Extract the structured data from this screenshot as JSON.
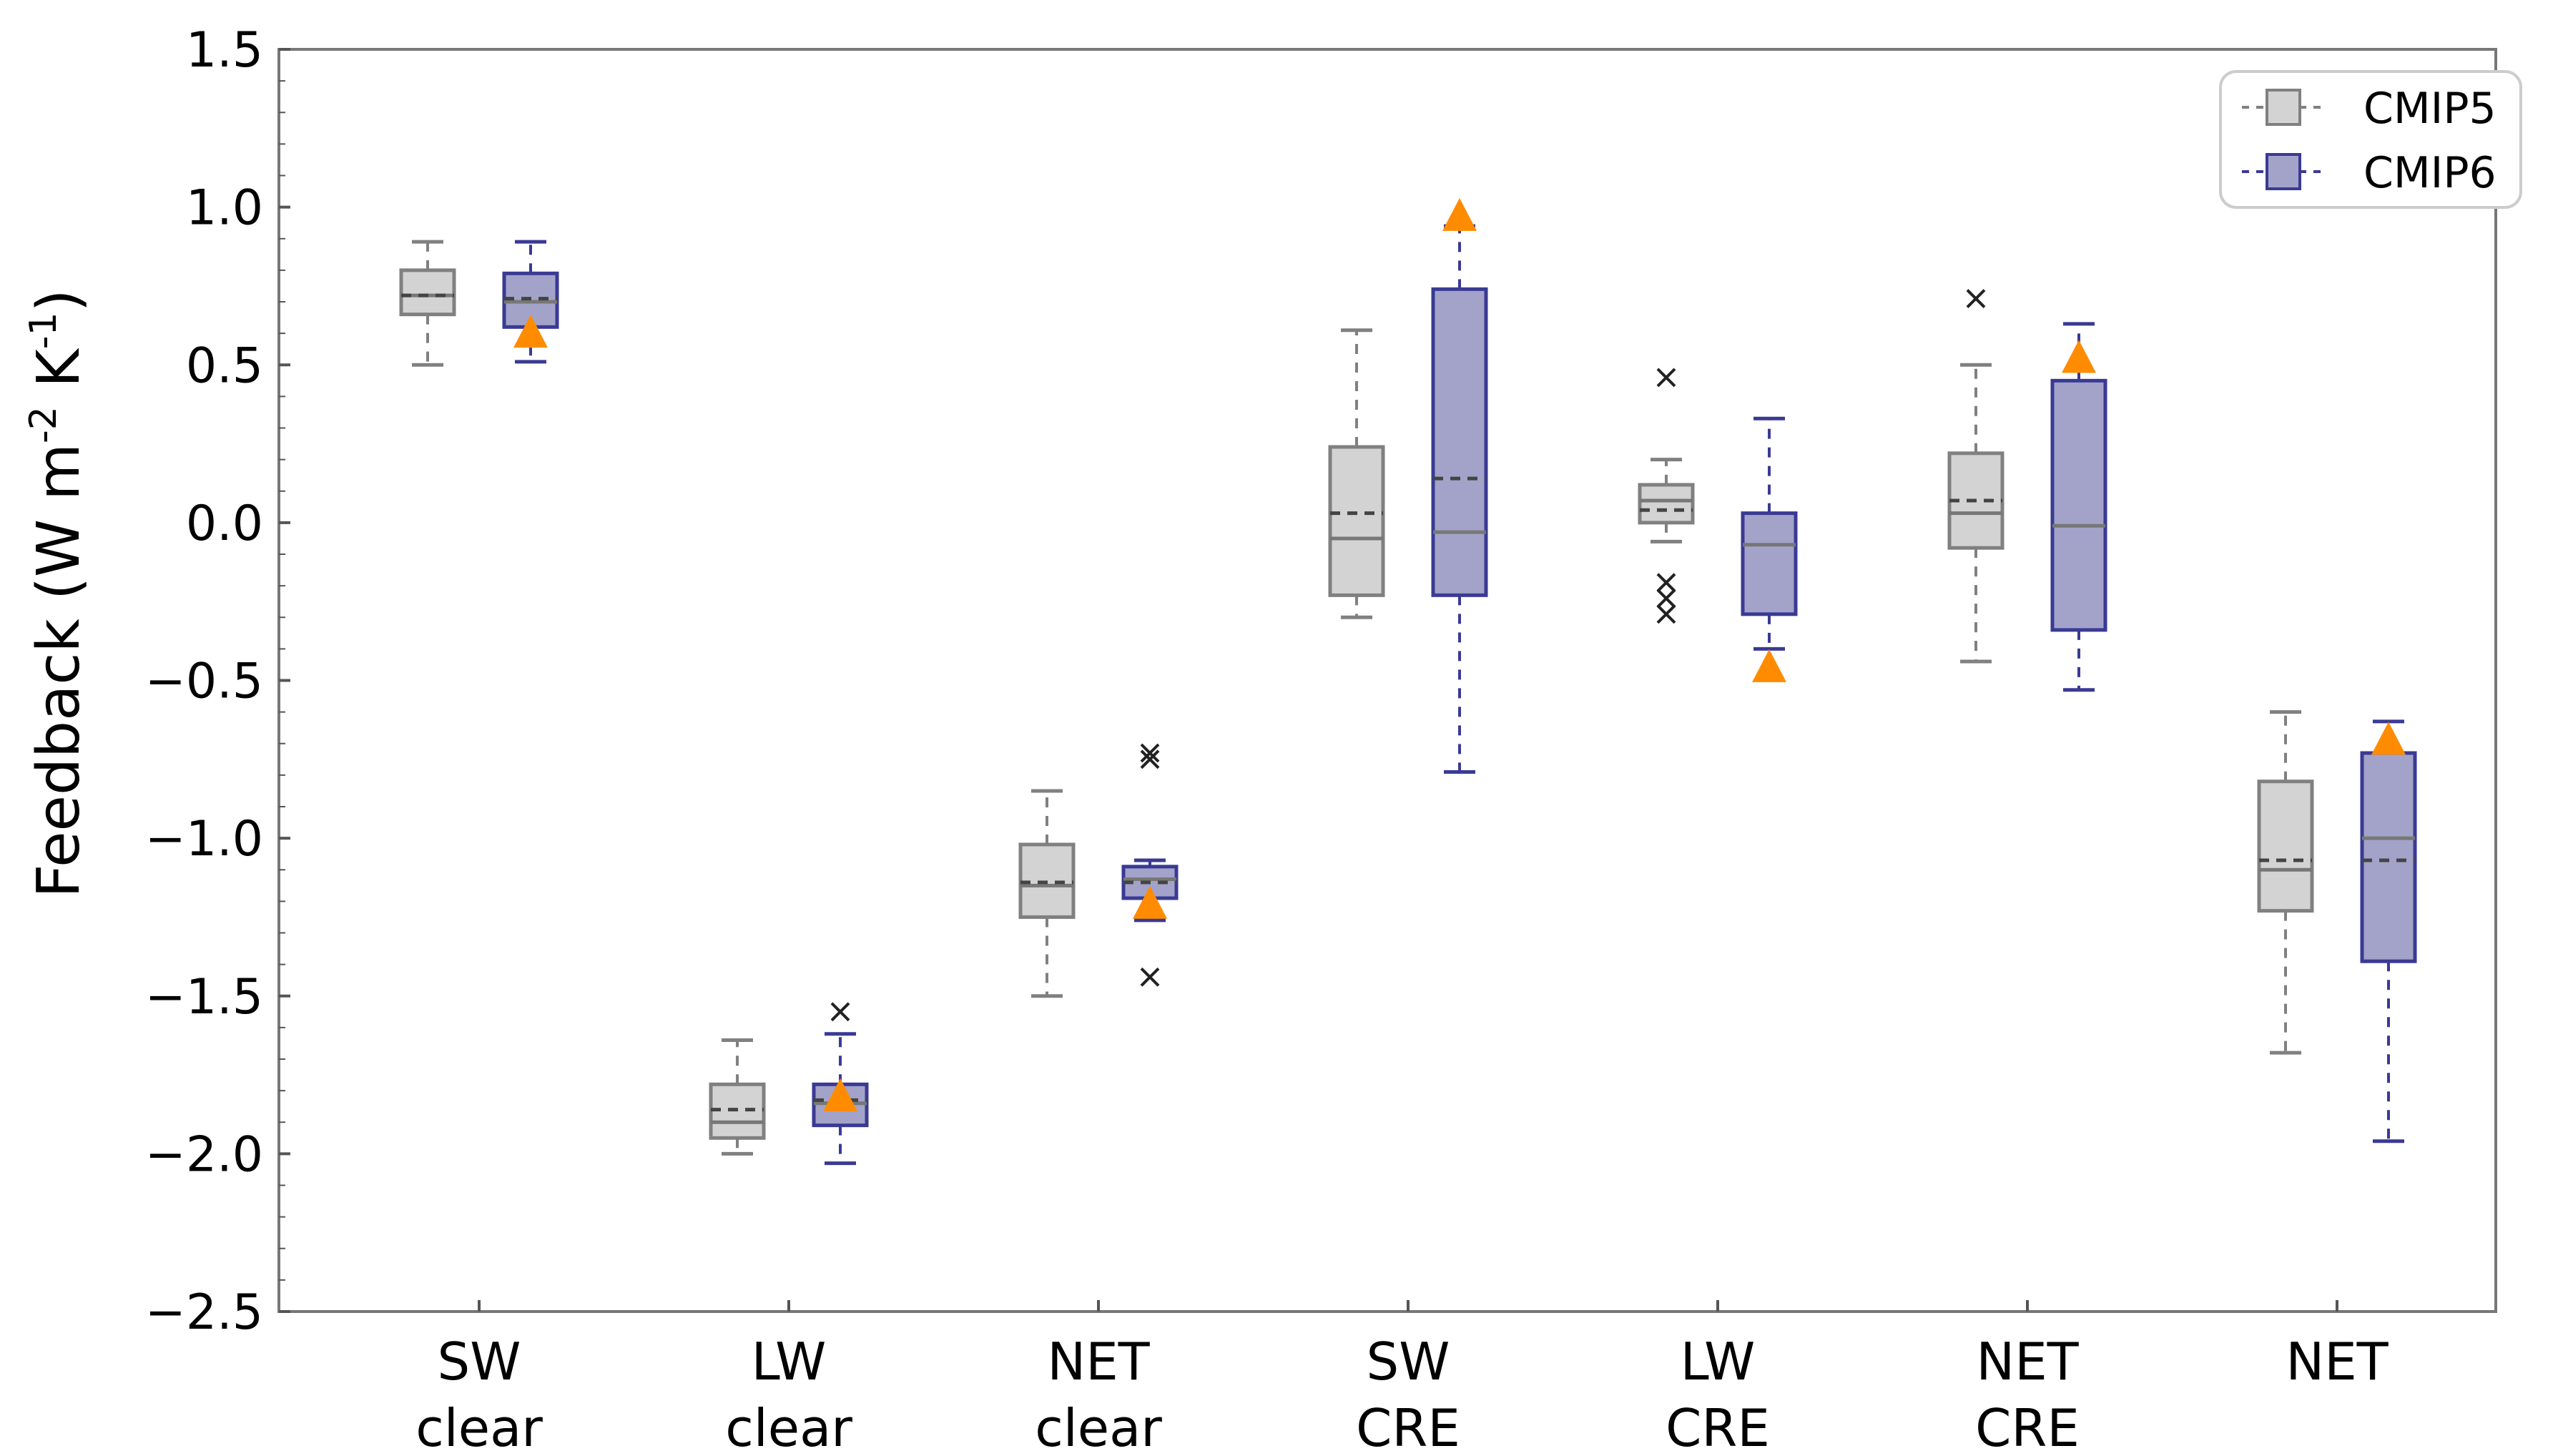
{
  "chart_data": {
    "type": "box",
    "title": "",
    "xlabel": "",
    "ylabel": "Feedback (W m-2 K-1)",
    "ylabel_parts": {
      "base": "Feedback (W m",
      "exp1": "-2",
      "mid": " K",
      "exp2": "-1",
      "end": ")"
    },
    "ylim": [
      -2.5,
      1.5
    ],
    "yticks": [
      "1.5",
      "1.0",
      "0.5",
      "0.0",
      "−0.5",
      "−1.0",
      "−1.5",
      "−2.0",
      "−2.5"
    ],
    "ytick_values": [
      1.5,
      1.0,
      0.5,
      0.0,
      -0.5,
      -1.0,
      -1.5,
      -2.0,
      -2.5
    ],
    "grid": false,
    "legend_position": "top-right",
    "categories": [
      {
        "line1": "SW",
        "line2": "clear"
      },
      {
        "line1": "LW",
        "line2": "clear"
      },
      {
        "line1": "NET",
        "line2": "clear"
      },
      {
        "line1": "SW",
        "line2": "CRE"
      },
      {
        "line1": "LW",
        "line2": "CRE"
      },
      {
        "line1": "NET",
        "line2": "CRE"
      },
      {
        "line1": "NET",
        "line2": ""
      }
    ],
    "series": [
      {
        "name": "CMIP5",
        "fill": "#d3d3d3",
        "stroke": "#808080",
        "boxes": [
          {
            "whislo": 0.5,
            "q1": 0.66,
            "med": 0.72,
            "mean": 0.72,
            "q3": 0.8,
            "whishi": 0.89,
            "fliers": []
          },
          {
            "whislo": -2.0,
            "q1": -1.95,
            "med": -1.9,
            "mean": -1.86,
            "q3": -1.78,
            "whishi": -1.64,
            "fliers": []
          },
          {
            "whislo": -1.5,
            "q1": -1.25,
            "med": -1.15,
            "mean": -1.14,
            "q3": -1.02,
            "whishi": -0.85,
            "fliers": []
          },
          {
            "whislo": -0.3,
            "q1": -0.23,
            "med": -0.05,
            "mean": 0.03,
            "q3": 0.24,
            "whishi": 0.61,
            "fliers": []
          },
          {
            "whislo": -0.06,
            "q1": 0.0,
            "med": 0.07,
            "mean": 0.04,
            "q3": 0.12,
            "whishi": 0.2,
            "fliers": [
              0.46,
              -0.19,
              -0.24,
              -0.29
            ]
          },
          {
            "whislo": -0.44,
            "q1": -0.08,
            "med": 0.03,
            "mean": 0.07,
            "q3": 0.22,
            "whishi": 0.5,
            "fliers": [
              0.71
            ]
          },
          {
            "whislo": -1.68,
            "q1": -1.23,
            "med": -1.1,
            "mean": -1.07,
            "q3": -0.82,
            "whishi": -0.6,
            "fliers": []
          }
        ]
      },
      {
        "name": "CMIP6",
        "fill": "#a3a3c9",
        "stroke": "#3a3a94",
        "boxes": [
          {
            "whislo": 0.51,
            "q1": 0.62,
            "med": 0.7,
            "mean": 0.71,
            "q3": 0.79,
            "whishi": 0.89,
            "fliers": [],
            "marker": 0.6
          },
          {
            "whislo": -2.03,
            "q1": -1.91,
            "med": -1.84,
            "mean": -1.83,
            "q3": -1.78,
            "whishi": -1.62,
            "fliers": [
              -1.55
            ],
            "marker": -1.82
          },
          {
            "whislo": -1.26,
            "q1": -1.19,
            "med": -1.13,
            "mean": -1.14,
            "q3": -1.09,
            "whishi": -1.07,
            "fliers": [
              -0.73,
              -0.75,
              -1.44
            ],
            "marker": -1.21
          },
          {
            "whislo": -0.79,
            "q1": -0.23,
            "med": -0.03,
            "mean": 0.14,
            "q3": 0.74,
            "whishi": 0.94,
            "fliers": [],
            "marker": 0.97
          },
          {
            "whislo": -0.4,
            "q1": -0.29,
            "med": -0.07,
            "mean": null,
            "q3": 0.03,
            "whishi": 0.33,
            "fliers": [],
            "marker": -0.46
          },
          {
            "whislo": -0.53,
            "q1": -0.34,
            "med": -0.01,
            "mean": null,
            "q3": 0.45,
            "whishi": 0.63,
            "fliers": [],
            "marker": 0.52
          },
          {
            "whislo": -1.96,
            "q1": -1.39,
            "med": -1.0,
            "mean": -1.07,
            "q3": -0.73,
            "whishi": -0.63,
            "fliers": [],
            "marker": -0.69
          }
        ]
      }
    ],
    "marker_color": "#ff8c00",
    "flier_color": "#222222"
  }
}
